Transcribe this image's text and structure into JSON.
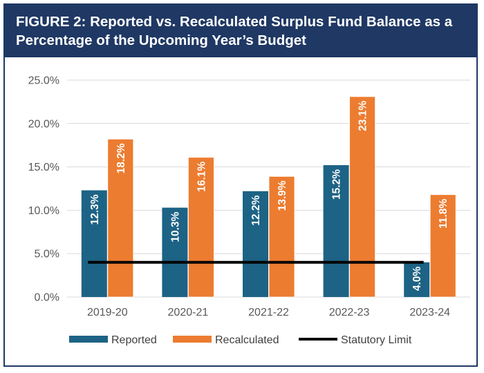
{
  "figure": {
    "title_line1": "FIGURE 2: Reported vs. Recalculated Surplus Fund Balance as a",
    "title_line2": "Percentage of the Upcoming Year’s Budget"
  },
  "colors": {
    "header_bg": "#1f3864",
    "reported": "#1d6385",
    "recalculated": "#ec7c30",
    "statutory_limit": "#000000",
    "gridline": "#d9d9d9"
  },
  "chart_data": {
    "type": "bar",
    "title": "",
    "xlabel": "",
    "ylabel": "",
    "ylim": [
      0,
      25
    ],
    "yticks": [
      "0.0%",
      "5.0%",
      "10.0%",
      "15.0%",
      "20.0%",
      "25.0%"
    ],
    "ytick_values": [
      0,
      5,
      10,
      15,
      20,
      25
    ],
    "grid": true,
    "legend_position": "bottom",
    "categories": [
      "2019-20",
      "2020-21",
      "2021-22",
      "2022-23",
      "2023-24"
    ],
    "series": [
      {
        "name": "Reported",
        "values": [
          12.3,
          10.3,
          12.2,
          15.2,
          4.0
        ],
        "labels": [
          "12.3%",
          "10.3%",
          "12.2%",
          "15.2%",
          "4.0%"
        ]
      },
      {
        "name": "Recalculated",
        "values": [
          18.2,
          16.1,
          13.9,
          23.1,
          11.8
        ],
        "labels": [
          "18.2%",
          "16.1%",
          "13.9%",
          "23.1%",
          "11.8%"
        ]
      }
    ],
    "line": {
      "name": "Statutory Limit",
      "value": 4.0
    }
  }
}
